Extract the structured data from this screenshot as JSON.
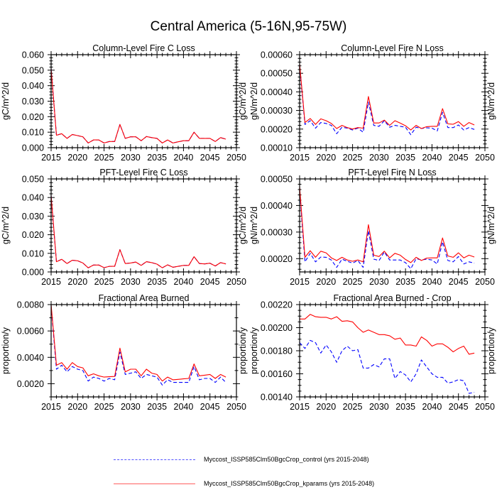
{
  "figure": {
    "title": "Central America (5-16N,95-75W)",
    "legend": [
      {
        "name": "Myccost_ISSP585Clm50BgcCrop_control (yrs 2015-2048)",
        "color": "#0000ff",
        "style": "dashed"
      },
      {
        "name": "Myccost_ISSP585Clm50BgcCrop_kparams (yrs 2015-2048)",
        "color": "#ff0000",
        "style": "solid"
      }
    ]
  },
  "chart_data": [
    {
      "type": "line",
      "title": "Column-Level Fire C Loss",
      "xlabel": "",
      "ylabel": "gC/m^2/d",
      "xlim": [
        2015,
        2050
      ],
      "ylim": [
        0.0,
        0.06
      ],
      "xticks": [
        2015,
        2020,
        2025,
        2030,
        2035,
        2040,
        2045,
        2050
      ],
      "yticks": [
        0.0,
        0.01,
        0.02,
        0.03,
        0.04,
        0.05,
        0.06
      ],
      "ytick_labels": [
        "0.000",
        "0.010",
        "0.020",
        "0.030",
        "0.040",
        "0.050",
        "0.060"
      ],
      "yminor": 5,
      "x": [
        2015,
        2016,
        2017,
        2018,
        2019,
        2020,
        2021,
        2022,
        2023,
        2024,
        2025,
        2026,
        2027,
        2028,
        2029,
        2030,
        2031,
        2032,
        2033,
        2034,
        2035,
        2036,
        2037,
        2038,
        2039,
        2040,
        2041,
        2042,
        2043,
        2044,
        2045,
        2046,
        2047,
        2048
      ],
      "series": [
        {
          "name": "Myccost_ISSP585Clm50BgcCrop_control (yrs 2015-2048)",
          "color": "#0000ff",
          "dash": true,
          "values": [
            0.051,
            0.008,
            0.009,
            0.006,
            0.0085,
            0.0078,
            0.007,
            0.003,
            0.005,
            0.005,
            0.003,
            0.004,
            0.004,
            0.015,
            0.006,
            0.007,
            0.007,
            0.0045,
            0.0072,
            0.0065,
            0.006,
            0.003,
            0.005,
            0.003,
            0.0038,
            0.0045,
            0.0045,
            0.01,
            0.006,
            0.006,
            0.006,
            0.004,
            0.0065,
            0.0055
          ]
        },
        {
          "name": "Myccost_ISSP585Clm50BgcCrop_kparams (yrs 2015-2048)",
          "color": "#ff0000",
          "dash": false,
          "values": [
            0.051,
            0.008,
            0.009,
            0.006,
            0.0085,
            0.0078,
            0.007,
            0.003,
            0.005,
            0.005,
            0.003,
            0.004,
            0.004,
            0.015,
            0.006,
            0.007,
            0.007,
            0.0045,
            0.0072,
            0.0065,
            0.006,
            0.003,
            0.005,
            0.003,
            0.0038,
            0.0045,
            0.0045,
            0.01,
            0.006,
            0.006,
            0.006,
            0.004,
            0.0065,
            0.0055
          ]
        }
      ]
    },
    {
      "type": "line",
      "title": "Column-Level Fire N Loss",
      "xlabel": "",
      "ylabel": "gN/m^2/d",
      "xlim": [
        2015,
        2050
      ],
      "ylim": [
        0.0001,
        0.0006
      ],
      "xticks": [
        2015,
        2020,
        2025,
        2030,
        2035,
        2040,
        2045,
        2050
      ],
      "yticks": [
        0.0001,
        0.0002,
        0.0003,
        0.0004,
        0.0005,
        0.0006
      ],
      "ytick_labels": [
        "0.00010",
        "0.00020",
        "0.00030",
        "0.00040",
        "0.00050",
        "0.00060"
      ],
      "yminor": 5,
      "x": [
        2015,
        2016,
        2017,
        2018,
        2019,
        2020,
        2021,
        2022,
        2023,
        2024,
        2025,
        2026,
        2027,
        2028,
        2029,
        2030,
        2031,
        2032,
        2033,
        2034,
        2035,
        2036,
        2037,
        2038,
        2039,
        2040,
        2041,
        2042,
        2043,
        2044,
        2045,
        2046,
        2047,
        2048
      ],
      "series": [
        {
          "name": "Myccost_ISSP585Clm50BgcCrop_control (yrs 2015-2048)",
          "color": "#0000ff",
          "dash": true,
          "values": [
            0.00054,
            0.000225,
            0.000245,
            0.000205,
            0.000235,
            0.00023,
            0.00022,
            0.000175,
            0.00021,
            0.000205,
            0.000195,
            0.000205,
            0.000183,
            0.000345,
            0.00022,
            0.000215,
            0.000245,
            0.00021,
            0.00022,
            0.000215,
            0.00021,
            0.00017,
            0.00021,
            0.000203,
            0.000207,
            0.000205,
            0.00019,
            0.00029,
            0.000208,
            0.000208,
            0.000222,
            0.000195,
            0.000208,
            0.000198
          ]
        },
        {
          "name": "Myccost_ISSP585Clm50BgcCrop_kparams (yrs 2015-2048)",
          "color": "#ff0000",
          "dash": false,
          "values": [
            0.00055,
            0.000235,
            0.000257,
            0.000225,
            0.000255,
            0.000245,
            0.00023,
            0.000203,
            0.00022,
            0.000208,
            0.0002,
            0.000208,
            0.000205,
            0.000375,
            0.000233,
            0.000233,
            0.000248,
            0.00022,
            0.000245,
            0.000232,
            0.000218,
            0.000195,
            0.00022,
            0.000203,
            0.000213,
            0.000215,
            0.000215,
            0.00031,
            0.000228,
            0.000226,
            0.00024,
            0.000215,
            0.000235,
            0.000222
          ]
        }
      ]
    },
    {
      "type": "line",
      "title": "PFT-Level Fire C Loss",
      "xlabel": "",
      "ylabel": "gC/m^2/d",
      "xlim": [
        2015,
        2050
      ],
      "ylim": [
        0.0,
        0.05
      ],
      "xticks": [
        2015,
        2020,
        2025,
        2030,
        2035,
        2040,
        2045,
        2050
      ],
      "yticks": [
        0.0,
        0.01,
        0.02,
        0.03,
        0.04,
        0.05
      ],
      "ytick_labels": [
        "0.000",
        "0.010",
        "0.020",
        "0.030",
        "0.040",
        "0.050"
      ],
      "yminor": 5,
      "x": [
        2015,
        2016,
        2017,
        2018,
        2019,
        2020,
        2021,
        2022,
        2023,
        2024,
        2025,
        2026,
        2027,
        2028,
        2029,
        2030,
        2031,
        2032,
        2033,
        2034,
        2035,
        2036,
        2037,
        2038,
        2039,
        2040,
        2041,
        2042,
        2043,
        2044,
        2045,
        2046,
        2047,
        2048
      ],
      "series": [
        {
          "name": "Myccost_ISSP585Clm50BgcCrop_control (yrs 2015-2048)",
          "color": "#0000ff",
          "dash": true,
          "values": [
            0.041,
            0.0055,
            0.0068,
            0.0045,
            0.0063,
            0.006,
            0.0048,
            0.0022,
            0.0037,
            0.0037,
            0.0023,
            0.003,
            0.003,
            0.012,
            0.0045,
            0.0048,
            0.0053,
            0.0035,
            0.0055,
            0.005,
            0.0042,
            0.0022,
            0.0038,
            0.0025,
            0.003,
            0.0035,
            0.0035,
            0.0082,
            0.0045,
            0.0043,
            0.0047,
            0.0032,
            0.005,
            0.0043
          ]
        },
        {
          "name": "Myccost_ISSP585Clm50BgcCrop_kparams (yrs 2015-2048)",
          "color": "#ff0000",
          "dash": false,
          "values": [
            0.041,
            0.0055,
            0.0068,
            0.0045,
            0.0063,
            0.006,
            0.0048,
            0.0022,
            0.0037,
            0.0037,
            0.0023,
            0.003,
            0.003,
            0.012,
            0.0045,
            0.0048,
            0.0053,
            0.0035,
            0.0055,
            0.005,
            0.0042,
            0.0022,
            0.0038,
            0.0025,
            0.003,
            0.0035,
            0.0035,
            0.0082,
            0.0045,
            0.0043,
            0.0047,
            0.0032,
            0.005,
            0.0043
          ]
        }
      ]
    },
    {
      "type": "line",
      "title": "PFT-Level Fire N Loss",
      "xlabel": "",
      "ylabel": "gN/m^2/d",
      "xlim": [
        2015,
        2050
      ],
      "ylim": [
        0.00015,
        0.0005
      ],
      "xticks": [
        2015,
        2020,
        2025,
        2030,
        2035,
        2040,
        2045,
        2050
      ],
      "yticks": [
        0.0002,
        0.0003,
        0.0004,
        0.0005
      ],
      "ytick_labels": [
        "0.00020",
        "0.00030",
        "0.00040",
        "0.00050"
      ],
      "yminor": 5,
      "x": [
        2015,
        2016,
        2017,
        2018,
        2019,
        2020,
        2021,
        2022,
        2023,
        2024,
        2025,
        2026,
        2027,
        2028,
        2029,
        2030,
        2031,
        2032,
        2033,
        2034,
        2035,
        2036,
        2037,
        2038,
        2039,
        2040,
        2041,
        2042,
        2043,
        2044,
        2045,
        2046,
        2047,
        2048
      ],
      "series": [
        {
          "name": "Myccost_ISSP585Clm50BgcCrop_control (yrs 2015-2048)",
          "color": "#0000ff",
          "dash": true,
          "values": [
            0.00046,
            0.000188,
            0.00022,
            0.000188,
            0.000206,
            0.000205,
            0.000195,
            0.000167,
            0.000198,
            0.00019,
            0.000183,
            0.000193,
            0.000167,
            0.000305,
            0.000198,
            0.000193,
            0.000225,
            0.000195,
            0.000195,
            0.000195,
            0.000185,
            0.000162,
            0.0002,
            0.000195,
            0.000198,
            0.000195,
            0.00018,
            0.000263,
            0.000193,
            0.000188,
            0.000208,
            0.00018,
            0.000188,
            0.000183
          ]
        },
        {
          "name": "Myccost_ISSP585Clm50BgcCrop_kparams (yrs 2015-2048)",
          "color": "#ff0000",
          "dash": false,
          "values": [
            0.00047,
            0.000205,
            0.00023,
            0.000205,
            0.000228,
            0.000222,
            0.000203,
            0.000193,
            0.000205,
            0.000195,
            0.00019,
            0.000195,
            0.000188,
            0.000328,
            0.000213,
            0.000208,
            0.000228,
            0.000203,
            0.00022,
            0.000213,
            0.000197,
            0.000185,
            0.000205,
            0.000193,
            0.000202,
            0.000203,
            0.000203,
            0.000278,
            0.00021,
            0.000205,
            0.000222,
            0.000203,
            0.000213,
            0.000206
          ]
        }
      ]
    },
    {
      "type": "line",
      "title": "Fractional Area Burned",
      "xlabel": "",
      "ylabel": "proportion/y",
      "xlim": [
        2015,
        2050
      ],
      "ylim": [
        0.001,
        0.008
      ],
      "xticks": [
        2015,
        2020,
        2025,
        2030,
        2035,
        2040,
        2045,
        2050
      ],
      "yticks": [
        0.002,
        0.004,
        0.006,
        0.008
      ],
      "ytick_labels": [
        "0.0020",
        "0.0040",
        "0.0060",
        "0.0080"
      ],
      "yminor": 2,
      "x": [
        2015,
        2016,
        2017,
        2018,
        2019,
        2020,
        2021,
        2022,
        2023,
        2024,
        2025,
        2026,
        2027,
        2028,
        2029,
        2030,
        2031,
        2032,
        2033,
        2034,
        2035,
        2036,
        2037,
        2038,
        2039,
        2040,
        2041,
        2042,
        2043,
        2044,
        2045,
        2046,
        2047,
        2048
      ],
      "series": [
        {
          "name": "Myccost_ISSP585Clm50BgcCrop_control (yrs 2015-2048)",
          "color": "#0000ff",
          "dash": true,
          "values": [
            0.0079,
            0.0031,
            0.0034,
            0.0029,
            0.0033,
            0.0031,
            0.003,
            0.0022,
            0.0025,
            0.0024,
            0.0022,
            0.0024,
            0.0023,
            0.0044,
            0.0027,
            0.0028,
            0.0029,
            0.0024,
            0.0027,
            0.0026,
            0.0025,
            0.0019,
            0.0023,
            0.0021,
            0.0021,
            0.0021,
            0.0021,
            0.0033,
            0.0023,
            0.0024,
            0.0024,
            0.0021,
            0.0025,
            0.0021
          ]
        },
        {
          "name": "Myccost_ISSP585Clm50BgcCrop_kparams (yrs 2015-2048)",
          "color": "#ff0000",
          "dash": false,
          "values": [
            0.008,
            0.0034,
            0.0036,
            0.0031,
            0.0036,
            0.0033,
            0.0032,
            0.0026,
            0.00275,
            0.0026,
            0.0025,
            0.00253,
            0.00255,
            0.0047,
            0.0029,
            0.0031,
            0.0031,
            0.0026,
            0.0031,
            0.0028,
            0.0027,
            0.0022,
            0.0025,
            0.0023,
            0.00233,
            0.00237,
            0.0024,
            0.0035,
            0.0026,
            0.00265,
            0.0027,
            0.0024,
            0.0027,
            0.0025
          ]
        }
      ]
    },
    {
      "type": "line",
      "title": "Fractional Area Burned - Crop",
      "xlabel": "",
      "ylabel": "proportion/y",
      "xlim": [
        2015,
        2050
      ],
      "ylim": [
        0.0014,
        0.0022
      ],
      "xticks": [
        2015,
        2020,
        2025,
        2030,
        2035,
        2040,
        2045,
        2050
      ],
      "yticks": [
        0.0014,
        0.0016,
        0.0018,
        0.002,
        0.0022
      ],
      "ytick_labels": [
        "0.00140",
        "0.00160",
        "0.00180",
        "0.00200",
        "0.00220"
      ],
      "yminor": 4,
      "x": [
        2015,
        2016,
        2017,
        2018,
        2019,
        2020,
        2021,
        2022,
        2023,
        2024,
        2025,
        2026,
        2027,
        2028,
        2029,
        2030,
        2031,
        2032,
        2033,
        2034,
        2035,
        2036,
        2037,
        2038,
        2039,
        2040,
        2041,
        2042,
        2043,
        2044,
        2045,
        2046,
        2047,
        2048
      ],
      "series": [
        {
          "name": "Myccost_ISSP585Clm50BgcCrop_control (yrs 2015-2048)",
          "color": "#0000ff",
          "dash": true,
          "values": [
            0.00187,
            0.00182,
            0.00189,
            0.00187,
            0.00178,
            0.00185,
            0.00179,
            0.0017,
            0.0018,
            0.00184,
            0.0018,
            0.00181,
            0.00165,
            0.00165,
            0.00168,
            0.00166,
            0.00173,
            0.00173,
            0.00156,
            0.00162,
            0.00159,
            0.00153,
            0.0016,
            0.00172,
            0.00166,
            0.0016,
            0.00157,
            0.00157,
            0.00152,
            0.00153,
            0.00155,
            0.00154,
            0.00143,
            0.00144
          ]
        },
        {
          "name": "Myccost_ISSP585Clm50BgcCrop_kparams (yrs 2015-2048)",
          "color": "#ff0000",
          "dash": false,
          "values": [
            0.002075,
            0.002075,
            0.002115,
            0.002095,
            0.00209,
            0.00209,
            0.002075,
            0.002095,
            0.002055,
            0.00206,
            0.00205,
            0.002,
            0.00196,
            0.00198,
            0.00196,
            0.00194,
            0.00194,
            0.00193,
            0.0019,
            0.00191,
            0.00185,
            0.00185,
            0.00184,
            0.00192,
            0.00189,
            0.00184,
            0.00186,
            0.00186,
            0.00183,
            0.00179,
            0.00182,
            0.00184,
            0.00177,
            0.00178
          ]
        }
      ]
    }
  ]
}
